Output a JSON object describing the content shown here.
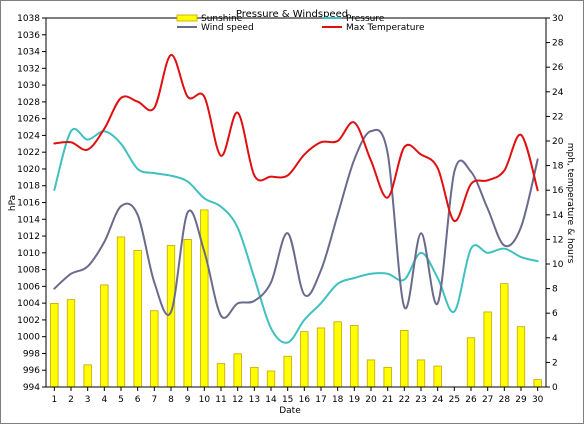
{
  "chart_data": {
    "type": "bar+line",
    "title": "Pressure & Windspeed",
    "xlabel": "Date",
    "ylabel_left": "hPa",
    "ylabel_right": "mph, temperature & hours",
    "x": [
      1,
      2,
      3,
      4,
      5,
      6,
      7,
      8,
      9,
      10,
      11,
      12,
      13,
      14,
      15,
      16,
      17,
      18,
      19,
      20,
      21,
      22,
      23,
      24,
      25,
      26,
      27,
      28,
      29,
      30
    ],
    "x_tick_labels": [
      "1",
      "2",
      "3",
      "4",
      "5",
      "6",
      "7",
      "8",
      "9",
      "10",
      "11",
      "12",
      "13",
      "14",
      "15",
      "16",
      "17",
      "18",
      "19",
      "20",
      "21",
      "22",
      "23",
      "24",
      "25",
      "26",
      "27",
      "28",
      "29",
      "30"
    ],
    "ylim_left": [
      994,
      1038
    ],
    "ylim_right": [
      0,
      30
    ],
    "y_ticks_left": [
      "994",
      "996",
      "998",
      "1000",
      "1002",
      "1004",
      "1006",
      "1008",
      "1010",
      "1012",
      "1014",
      "1016",
      "1018",
      "1020",
      "1022",
      "1024",
      "1026",
      "1028",
      "1030",
      "1032",
      "1034",
      "1036",
      "1038"
    ],
    "y_ticks_right": [
      "0",
      "2",
      "4",
      "6",
      "8",
      "10",
      "12",
      "14",
      "16",
      "18",
      "20",
      "22",
      "24",
      "26",
      "28",
      "30"
    ],
    "grid": false,
    "legend_position": "top",
    "series": [
      {
        "name": "Sunshine",
        "kind": "bar",
        "axis": "right",
        "color": "#ffff00",
        "edge_color": "#c8a000",
        "values": [
          6.8,
          7.1,
          1.8,
          8.3,
          12.2,
          11.1,
          6.2,
          11.5,
          12.0,
          14.4,
          1.9,
          2.7,
          1.6,
          1.3,
          2.5,
          4.5,
          4.8,
          5.3,
          5.0,
          2.2,
          1.6,
          4.6,
          2.2,
          1.7,
          0,
          4.0,
          6.1,
          8.4,
          4.9,
          0.6
        ]
      },
      {
        "name": "Pressure",
        "kind": "line",
        "axis": "left",
        "color": "#40c0c0",
        "values": [
          1017.5,
          1024.5,
          1023.5,
          1024.5,
          1023.0,
          1020.0,
          1019.5,
          1019.2,
          1018.5,
          1016.5,
          1015.5,
          1013.0,
          1007.0,
          1001.0,
          999.3,
          1002.0,
          1004.0,
          1006.3,
          1007.0,
          1007.5,
          1007.5,
          1006.8,
          1010.0,
          1007.0,
          1003.0,
          1010.5,
          1010.0,
          1010.5,
          1009.5,
          1009.0
        ]
      },
      {
        "name": "Wind speed",
        "kind": "line",
        "axis": "right",
        "color": "#6a6a8c",
        "values": [
          8.0,
          9.2,
          9.8,
          11.8,
          14.7,
          14.0,
          8.5,
          6.1,
          14.2,
          11.0,
          5.8,
          6.8,
          7.0,
          8.5,
          12.5,
          7.5,
          9.5,
          14.0,
          18.5,
          20.8,
          19.0,
          6.5,
          12.5,
          6.8,
          17.5,
          17.5,
          14.5,
          11.5,
          13.0,
          18.5
        ]
      },
      {
        "name": "Max Temperature",
        "kind": "line",
        "axis": "right",
        "color": "#e01010",
        "values": [
          19.8,
          19.9,
          19.3,
          21.0,
          23.5,
          23.2,
          22.7,
          27.0,
          23.6,
          23.6,
          18.8,
          22.3,
          17.2,
          17.1,
          17.2,
          18.9,
          19.9,
          20.0,
          21.5,
          18.4,
          15.4,
          19.5,
          18.9,
          17.8,
          13.5,
          16.5,
          16.8,
          17.6,
          20.5,
          16.0
        ]
      }
    ]
  }
}
